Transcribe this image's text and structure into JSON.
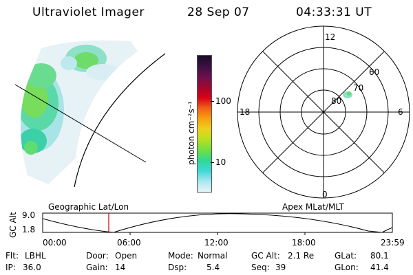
{
  "header": {
    "instrument": "Ultraviolet Imager",
    "date": "28 Sep 07",
    "time": "04:33:31 UT"
  },
  "colorbar": {
    "label": "photon cm⁻²s⁻¹",
    "ticks": [
      "100",
      "10"
    ],
    "colors": [
      "#1a0a2a",
      "#3a1040",
      "#6a1050",
      "#a00830",
      "#d80018",
      "#f06018",
      "#f8a010",
      "#f0d020",
      "#b8e020",
      "#70e040",
      "#30d890",
      "#40d8d8",
      "#a8e8f0",
      "#e8f4f8"
    ]
  },
  "polar": {
    "mlt_labels": [
      "12",
      "18",
      "6",
      "0"
    ],
    "lat_labels": [
      "60",
      "70",
      "80"
    ]
  },
  "timeline": {
    "left_title": "Geographic Lat/Lon",
    "right_title": "Apex MLat/MLT",
    "y_label": "GC Alt",
    "y_ticks": [
      "9.0",
      "1.8"
    ],
    "x_ticks": [
      "00:00",
      "06:00",
      "12:00",
      "18:00",
      "23:59"
    ],
    "marker_color": "#cc0000"
  },
  "info": {
    "flt_label": "Flt:",
    "flt_value": "LBHL",
    "ip_label": "IP:",
    "ip_value": "36.0",
    "door_label": "Door:",
    "door_value": "Open",
    "gain_label": "Gain:",
    "gain_value": "14",
    "mode_label": "Mode:",
    "mode_value": "Normal",
    "dsp_label": "Dsp:",
    "dsp_value": "5.4",
    "gcalt_label": "GC Alt:",
    "gcalt_value": "2.1 Re",
    "seq_label": "Seq:",
    "seq_value": "39",
    "glat_label": "GLat:",
    "glat_value": "80.1",
    "glon_label": "GLon:",
    "glon_value": "41.4"
  }
}
